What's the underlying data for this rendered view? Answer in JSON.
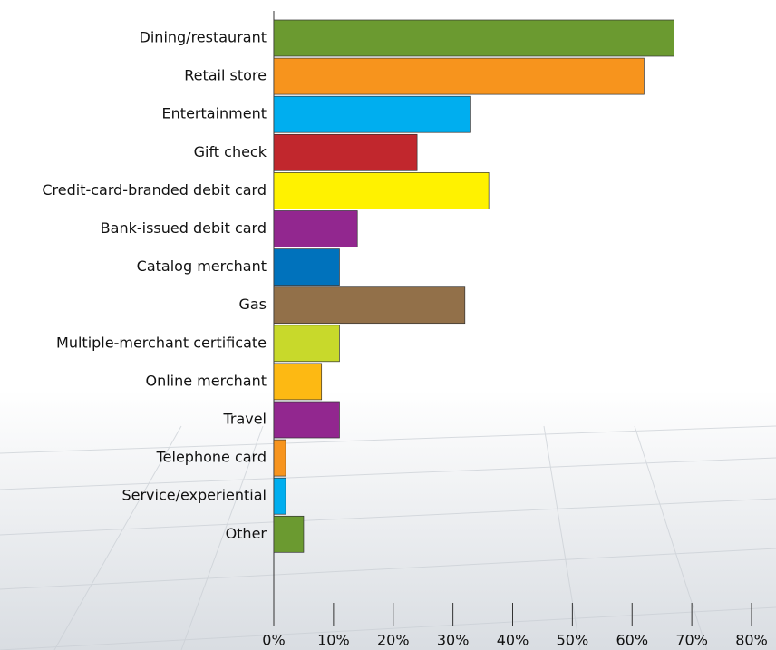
{
  "chart_data": {
    "type": "bar",
    "orientation": "horizontal",
    "categories": [
      "Dining/restaurant",
      "Retail store",
      "Entertainment",
      "Gift check",
      "Credit-card-branded debit card",
      "Bank-issued debit card",
      "Catalog merchant",
      "Gas",
      "Multiple-merchant certificate",
      "Online merchant",
      "Travel",
      "Telephone card",
      "Service/experiential",
      "Other"
    ],
    "values": [
      67,
      62,
      33,
      24,
      36,
      14,
      11,
      32,
      11,
      8,
      11,
      2,
      2,
      5
    ],
    "colors": [
      "#6b9a30",
      "#f7941d",
      "#00aeef",
      "#c1272d",
      "#fff200",
      "#92278f",
      "#0072bc",
      "#927049",
      "#c8d92b",
      "#fdb913",
      "#92278f",
      "#f7941d",
      "#00aeef",
      "#6b9a30"
    ],
    "xlim": [
      0,
      80
    ],
    "xticks": [
      {
        "value": 0,
        "label": "0%"
      },
      {
        "value": 10,
        "label": "10%"
      },
      {
        "value": 20,
        "label": "20%"
      },
      {
        "value": 30,
        "label": "30%"
      },
      {
        "value": 40,
        "label": "40%"
      },
      {
        "value": 50,
        "label": "50%"
      },
      {
        "value": 60,
        "label": "60%"
      },
      {
        "value": 70,
        "label": "70%"
      },
      {
        "value": 80,
        "label": "80%"
      }
    ]
  }
}
